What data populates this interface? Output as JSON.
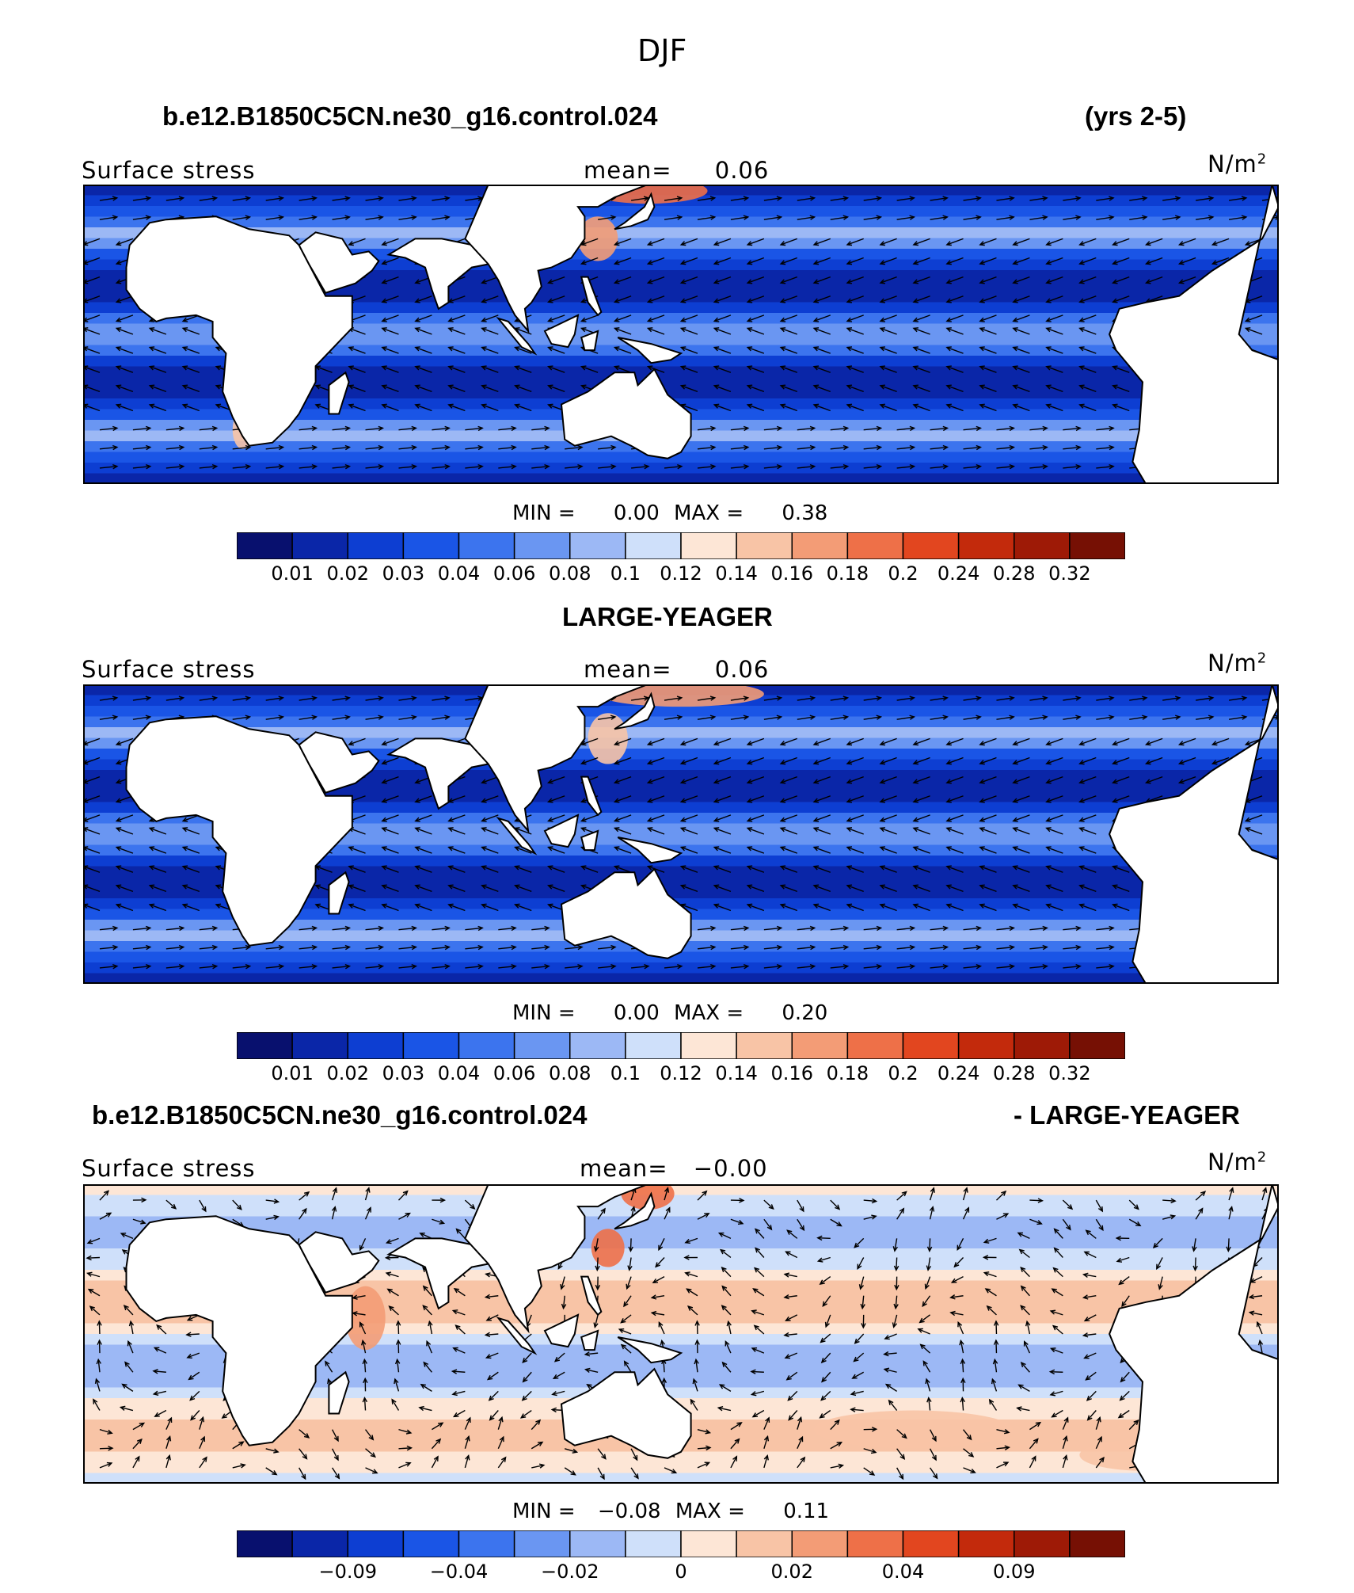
{
  "suptitle": "DJF",
  "panels": [
    {
      "title_left": "b.e12.B1850C5CN.ne30_g16.control.024",
      "title_right": "(yrs 2-5)",
      "label_left": "Surface stress",
      "mean_label": "mean=",
      "mean_value": "0.06",
      "units": "N/m",
      "units_sup": "2",
      "min_label": "MIN =",
      "min_value": "0.00",
      "max_label": "MAX =",
      "max_value": "0.38"
    },
    {
      "title_center": "LARGE-YEAGER",
      "label_left": "Surface stress",
      "mean_label": "mean=",
      "mean_value": "0.06",
      "units": "N/m",
      "units_sup": "2",
      "min_label": "MIN =",
      "min_value": "0.00",
      "max_label": "MAX =",
      "max_value": "0.20"
    },
    {
      "title_left": "b.e12.B1850C5CN.ne30_g16.control.024",
      "title_right": "- LARGE-YEAGER",
      "label_left": "Surface stress",
      "mean_label": "mean=",
      "mean_value": "−0.00",
      "units": "N/m",
      "units_sup": "2",
      "min_label": "MIN =",
      "min_value": "−0.08",
      "max_label": "MAX =",
      "max_value": "0.11"
    }
  ],
  "chart_data": {
    "type": "heatmap",
    "variable": "Surface stress",
    "units": "N/m^2",
    "season": "DJF",
    "maps": [
      {
        "name": "b.e12.B1850C5CN.ne30_g16.control.024",
        "min": 0.0,
        "max": 0.38,
        "mean": 0.06
      },
      {
        "name": "LARGE-YEAGER",
        "min": 0.0,
        "max": 0.2,
        "mean": 0.06
      },
      {
        "name": "b.e12.B1850C5CN.ne30_g16.control.024 - LARGE-YEAGER",
        "min": -0.08,
        "max": 0.11,
        "mean": -0.0
      }
    ],
    "colorbar_abs": {
      "colors": [
        "#08106e",
        "#0a26a8",
        "#0d3ed2",
        "#1a55e6",
        "#3c74ee",
        "#6a96f2",
        "#9cb8f5",
        "#cfe0fa",
        "#fde6d6",
        "#f8c4a6",
        "#f39c76",
        "#ee7048",
        "#e2461f",
        "#c32a0c",
        "#9e1a06",
        "#761004"
      ],
      "ticks": [
        "0.01",
        "0.02",
        "0.03",
        "0.04",
        "0.06",
        "0.08",
        "0.1",
        "0.12",
        "0.14",
        "0.16",
        "0.18",
        "0.2",
        "0.24",
        "0.28",
        "0.32"
      ]
    },
    "colorbar_diff": {
      "colors": [
        "#08106e",
        "#0a26a8",
        "#0d3ed2",
        "#1a55e6",
        "#3c74ee",
        "#6a96f2",
        "#9cb8f5",
        "#cfe0fa",
        "#fde6d6",
        "#f8c4a6",
        "#f39c76",
        "#ee7048",
        "#e2461f",
        "#c32a0c",
        "#9e1a06",
        "#761004"
      ],
      "ticks": [
        "−0.09",
        "−0.04",
        "−0.02",
        "0",
        "0.02",
        "0.04",
        "0.09"
      ],
      "tick_boundaries": [
        2,
        4,
        6,
        8,
        10,
        12,
        14
      ]
    }
  }
}
